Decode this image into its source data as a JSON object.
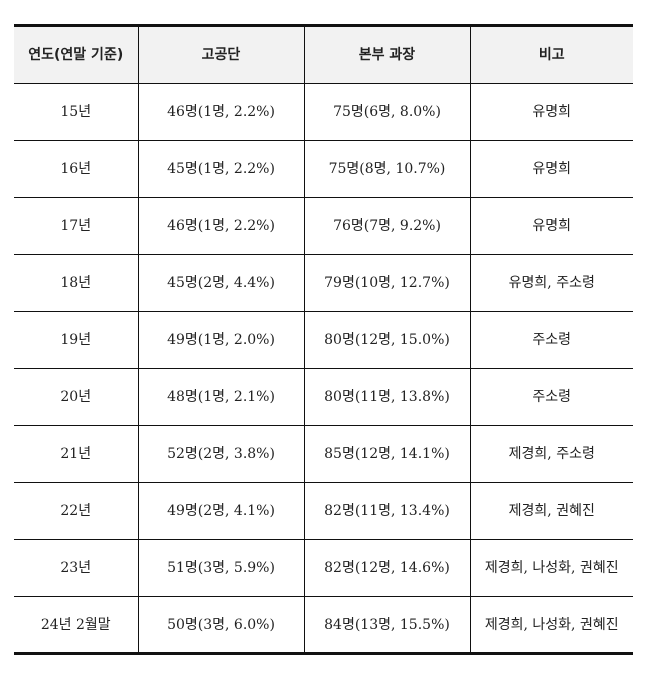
{
  "table": {
    "headers": [
      "연도(연말 기준)",
      "고공단",
      "본부 과장",
      "비고"
    ],
    "rows": [
      [
        "15년",
        "46명(1명, 2.2%)",
        "75명(6명, 8.0%)",
        "유명희"
      ],
      [
        "16년",
        "45명(1명, 2.2%)",
        "75명(8명, 10.7%)",
        "유명희"
      ],
      [
        "17년",
        "46명(1명, 2.2%)",
        "76명(7명, 9.2%)",
        "유명희"
      ],
      [
        "18년",
        "45명(2명, 4.4%)",
        "79명(10명, 12.7%)",
        "유명희, 주소령"
      ],
      [
        "19년",
        "49명(1명, 2.0%)",
        "80명(12명, 15.0%)",
        "주소령"
      ],
      [
        "20년",
        "48명(1명, 2.1%)",
        "80명(11명, 13.8%)",
        "주소령"
      ],
      [
        "21년",
        "52명(2명, 3.8%)",
        "85명(12명, 14.1%)",
        "제경희, 주소령"
      ],
      [
        "22년",
        "49명(2명, 4.1%)",
        "82명(11명, 13.4%)",
        "제경희, 권혜진"
      ],
      [
        "23년",
        "51명(3명, 5.9%)",
        "82명(12명, 14.6%)",
        "제경희, 나성화, 권혜진"
      ],
      [
        "24년 2월말",
        "50명(3명, 6.0%)",
        "84명(13명, 15.5%)",
        "제경희, 나성화, 권혜진"
      ]
    ]
  }
}
